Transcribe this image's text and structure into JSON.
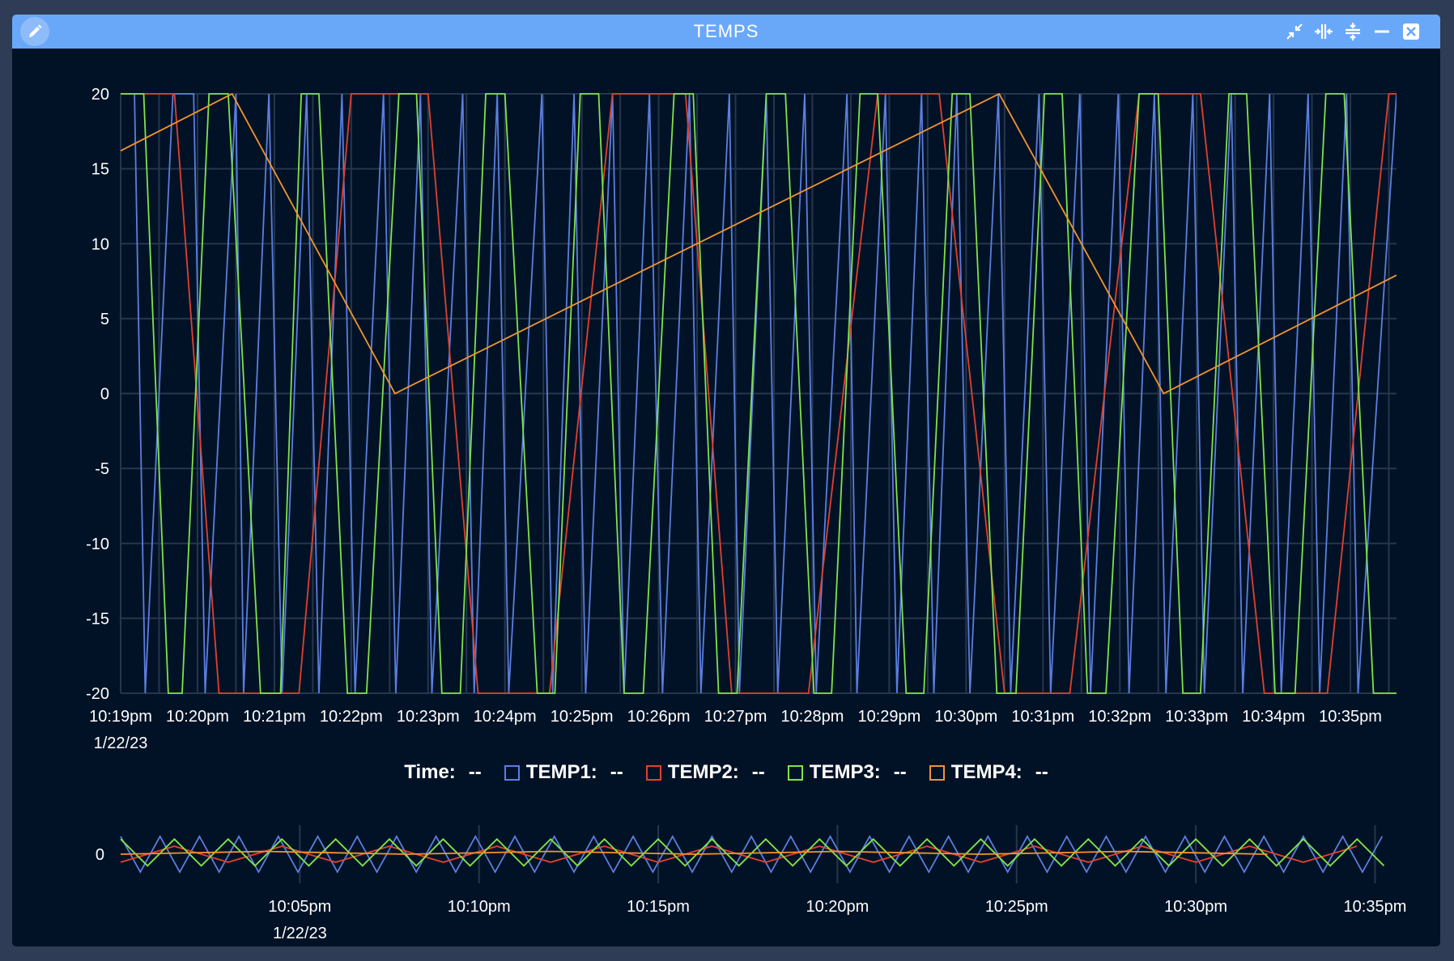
{
  "window": {
    "title": "TEMPS"
  },
  "titlebar_icons": [
    "edit-icon",
    "collapse-icon",
    "expand-width-icon",
    "collapse-height-icon",
    "minimize-icon",
    "close-icon"
  ],
  "legend": {
    "time_label": "Time:",
    "time_value": "--",
    "items": [
      {
        "name": "TEMP1",
        "label": "TEMP1:",
        "value": "--",
        "color": "#5b7fe0"
      },
      {
        "name": "TEMP2",
        "label": "TEMP2:",
        "value": "--",
        "color": "#e0412f"
      },
      {
        "name": "TEMP3",
        "label": "TEMP3:",
        "value": "--",
        "color": "#7ee44a"
      },
      {
        "name": "TEMP4",
        "label": "TEMP4:",
        "value": "--",
        "color": "#f2952e"
      }
    ]
  },
  "chart_data": [
    {
      "type": "line",
      "x_range": [
        "10:19pm",
        "10:35.6pm"
      ],
      "ylim": [
        -20,
        20
      ],
      "y_ticks": [
        "20",
        "15",
        "10",
        "5",
        "0",
        "-5",
        "-10",
        "-15",
        "-20"
      ],
      "x_tick_labels": [
        "10:19pm",
        "10:20pm",
        "10:21pm",
        "10:22pm",
        "10:23pm",
        "10:24pm",
        "10:25pm",
        "10:26pm",
        "10:27pm",
        "10:28pm",
        "10:29pm",
        "10:30pm",
        "10:31pm",
        "10:32pm",
        "10:33pm",
        "10:34pm",
        "10:35pm"
      ],
      "x_date_label": "1/22/23",
      "grid": true,
      "series": [
        {
          "name": "TEMP1",
          "color": "#5b7fe0",
          "x": [
            19.0,
            19.18,
            19.32,
            19.68,
            19.95,
            20.1,
            20.5,
            20.6,
            20.93,
            21.1,
            21.42,
            21.58,
            21.88,
            22.05,
            22.42,
            22.58,
            22.9,
            23.05,
            23.45,
            23.6,
            23.9,
            24.05,
            24.48,
            24.62,
            24.9,
            25.05,
            25.4,
            25.55,
            25.88,
            26.05,
            26.4,
            26.55,
            26.92,
            27.05,
            27.4,
            27.55,
            27.9,
            28.05,
            28.45,
            28.58,
            28.95,
            29.1,
            29.42,
            29.58,
            29.88,
            30.05,
            30.42,
            30.58,
            30.95,
            31.1,
            31.48,
            31.62,
            31.98,
            32.12,
            32.45,
            32.6,
            32.95,
            33.1,
            33.45,
            33.6,
            33.95,
            34.1,
            34.45,
            34.6,
            34.95,
            35.1,
            35.6
          ],
          "y": [
            20,
            20,
            -20,
            20,
            20,
            -20,
            20,
            -20,
            20,
            -20,
            20,
            -20,
            20,
            -20,
            20,
            -20,
            20,
            -20,
            20,
            -20,
            20,
            -20,
            20,
            -20,
            20,
            -20,
            20,
            -20,
            20,
            -20,
            20,
            -20,
            20,
            -20,
            20,
            -20,
            20,
            -20,
            20,
            -20,
            20,
            -20,
            20,
            -20,
            20,
            -20,
            20,
            -20,
            20,
            -20,
            20,
            -20,
            20,
            -20,
            20,
            -20,
            20,
            -20,
            20,
            -20,
            20,
            -20,
            20,
            -20,
            20,
            -20,
            20
          ]
        },
        {
          "name": "TEMP2",
          "color": "#e0412f",
          "x": [
            19.0,
            19.7,
            20.28,
            21.32,
            22.0,
            23.0,
            23.65,
            24.58,
            25.4,
            26.35,
            26.95,
            27.95,
            28.85,
            29.65,
            30.5,
            31.35,
            32.25,
            33.05,
            33.88,
            34.7,
            35.5,
            35.6
          ],
          "y": [
            20,
            20,
            -20,
            -20,
            20,
            20,
            -20,
            -20,
            20,
            20,
            -20,
            -20,
            20,
            20,
            -20,
            -20,
            20,
            20,
            -20,
            -20,
            20,
            20
          ],
          "note_range": "values continue beyond axis limits"
        },
        {
          "name": "TEMP3",
          "color": "#7ee44a",
          "x": [
            19.0,
            19.3,
            19.62,
            19.8,
            20.15,
            20.4,
            20.82,
            21.08,
            21.35,
            21.58,
            21.95,
            22.2,
            22.62,
            22.85,
            23.18,
            23.42,
            23.75,
            24.0,
            24.42,
            24.65,
            24.98,
            25.22,
            25.55,
            25.8,
            26.2,
            26.45,
            26.78,
            27.02,
            27.4,
            27.65,
            28.02,
            28.25,
            28.62,
            28.85,
            29.22,
            29.45,
            29.82,
            30.05,
            30.4,
            30.65,
            31.02,
            31.25,
            31.58,
            31.82,
            32.25,
            32.5,
            32.82,
            33.05,
            33.42,
            33.65,
            34.02,
            34.28,
            34.68,
            34.92,
            35.3,
            35.6
          ],
          "y": [
            20,
            20,
            -20,
            -20,
            20,
            20,
            -20,
            -20,
            20,
            20,
            -20,
            -20,
            20,
            20,
            -20,
            -20,
            20,
            20,
            -20,
            -20,
            20,
            20,
            -20,
            -20,
            20,
            20,
            -20,
            -20,
            20,
            20,
            -20,
            -20,
            20,
            20,
            -20,
            -20,
            20,
            20,
            -20,
            -20,
            20,
            20,
            -20,
            -20,
            20,
            20,
            -20,
            -20,
            20,
            20,
            -20,
            -20,
            20,
            20,
            -20,
            -20
          ]
        },
        {
          "name": "TEMP4",
          "color": "#f2952e",
          "x": [
            19.0,
            20.45,
            22.57,
            30.43,
            32.57,
            35.6
          ],
          "y": [
            16.2,
            20,
            0,
            20,
            0,
            7.9
          ]
        }
      ]
    },
    {
      "type": "line",
      "role": "overview",
      "x_range": [
        "10:00pm",
        "10:35.6pm"
      ],
      "y_ticks": [
        "0"
      ],
      "x_tick_labels": [
        "10:05pm",
        "10:10pm",
        "10:15pm",
        "10:20pm",
        "10:25pm",
        "10:30pm",
        "10:35pm"
      ],
      "x_date_label": "1/22/23",
      "series": [
        {
          "name": "TEMP1",
          "color": "#5b7fe0",
          "period_min": 1.1,
          "amplitude": 1.0,
          "offset": 0
        },
        {
          "name": "TEMP2",
          "color": "#e0412f",
          "period_min": 3.0,
          "amplitude": 0.45,
          "offset": 0
        },
        {
          "name": "TEMP3",
          "color": "#7ee44a",
          "period_min": 1.5,
          "amplitude": 0.75,
          "offset": 0.1
        },
        {
          "name": "TEMP4",
          "color": "#f2952e",
          "period_min": 8.0,
          "amplitude": 0.08,
          "offset": 0.08
        }
      ]
    }
  ]
}
